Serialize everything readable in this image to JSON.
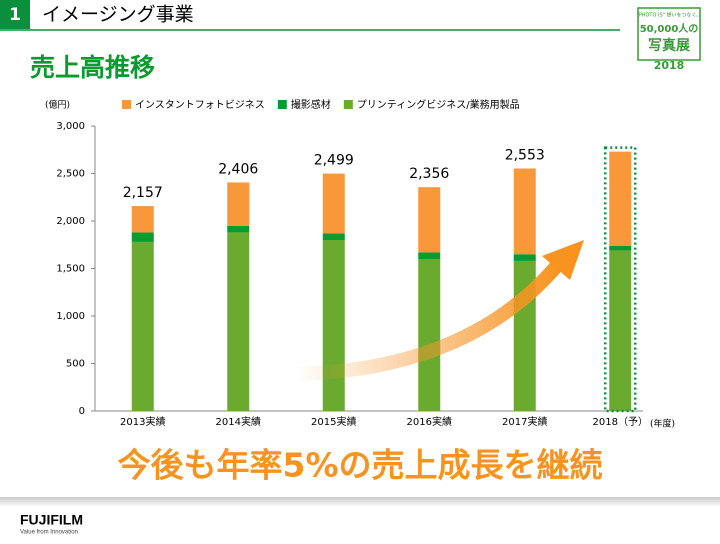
{
  "header": {
    "number": "1",
    "section": "イメージング事業",
    "title": "売上高推移"
  },
  "badge": {
    "tagline": "\"PHOTO IS\" 想いをつなぐ。",
    "line1": "50,000人の",
    "line2": "写真展",
    "year": "2018"
  },
  "chart_data": {
    "type": "stacked_bar",
    "y_unit": "(億円)",
    "x_unit": "(年度)",
    "categories": [
      "2013実績",
      "2014実績",
      "2015実績",
      "2016実績",
      "2017実績",
      "2018（予）"
    ],
    "series": [
      {
        "name": "インスタントフォトビジネス",
        "color": "#f9983a",
        "values": [
          277,
          456,
          629,
          686,
          903,
          990
        ]
      },
      {
        "name": "撮影感材",
        "color": "#0a9a2e",
        "values": [
          100,
          70,
          70,
          70,
          70,
          50
        ]
      },
      {
        "name": "プリンティングビジネス/業務用製品",
        "color": "#6aab2f",
        "values": [
          1780,
          1880,
          1800,
          1600,
          1580,
          1690
        ]
      }
    ],
    "totals": [
      2157,
      2406,
      2499,
      2356,
      2553,
      null
    ],
    "total_labels": [
      "2,157",
      "2,406",
      "2,499",
      "2,356",
      "2,553",
      null
    ],
    "ylim": [
      0,
      3000
    ],
    "yticks": [
      0,
      500,
      {
        "value": 1000,
        "label": "1,000"
      },
      {
        "value": 1500,
        "label": "1,500"
      },
      {
        "value": 2000,
        "label": "2,000"
      },
      {
        "value": 2500,
        "label": "2,500"
      },
      {
        "value": 3000,
        "label": "3,000"
      }
    ],
    "message": "今後も年率5%の売上成長を継続"
  },
  "footer": {
    "logo": "FUJIFILM",
    "slogan": "Value from Innovation"
  }
}
